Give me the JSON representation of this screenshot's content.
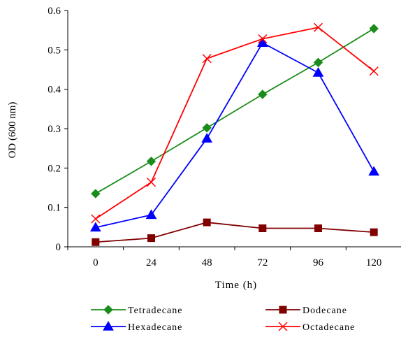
{
  "chart_data": {
    "type": "line",
    "title": "",
    "xlabel": "Time (h)",
    "ylabel": "OD (600 nm)",
    "x": [
      0,
      24,
      48,
      72,
      96,
      120
    ],
    "x_tick_labels": [
      "0",
      "24",
      "48",
      "72",
      "96",
      "120"
    ],
    "ylim": [
      0,
      0.6
    ],
    "y_tick_labels": [
      "0",
      "0.1",
      "0.2",
      "0.3",
      "0.4",
      "0.5",
      "0.6"
    ],
    "grid": false,
    "legend_position": "bottom",
    "series": [
      {
        "name": "Tetradecane",
        "color": "#1a8c1a",
        "marker": "diamond",
        "values": [
          0.135,
          0.217,
          0.302,
          0.387,
          0.468,
          0.554
        ]
      },
      {
        "name": "Dodecane",
        "color": "#800000",
        "marker": "square",
        "values": [
          0.012,
          0.022,
          0.062,
          0.047,
          0.047,
          0.037
        ]
      },
      {
        "name": "Hexadecane",
        "color": "#0000ff",
        "marker": "triangle",
        "values": [
          0.049,
          0.081,
          0.275,
          0.518,
          0.442,
          0.191
        ]
      },
      {
        "name": "Octadecane",
        "color": "#ff0000",
        "marker": "cross",
        "values": [
          0.071,
          0.164,
          0.478,
          0.528,
          0.557,
          0.446
        ]
      }
    ]
  }
}
